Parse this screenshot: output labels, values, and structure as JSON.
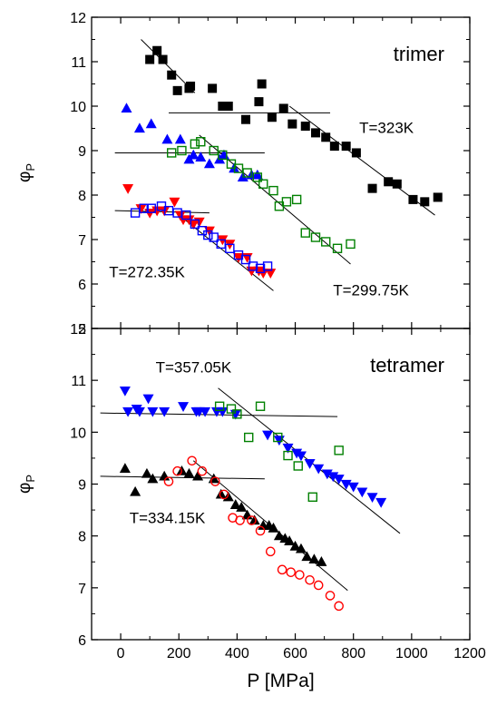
{
  "chart_data": [
    {
      "panel": "top",
      "type": "scatter",
      "panel_label": "trimer",
      "ylabel": "φ",
      "ylabel_subscript": "P",
      "xlim": [
        -100,
        1200
      ],
      "ylim": [
        5,
        12
      ],
      "yticks": [
        5,
        6,
        7,
        8,
        9,
        10,
        11,
        12
      ],
      "ytick_labels": [
        "5",
        "6",
        "7",
        "8",
        "9",
        "10",
        "11",
        "12"
      ],
      "grid": false,
      "annotations": [
        {
          "text": "T=323K",
          "x": 820,
          "y": 9.4
        },
        {
          "text": "T=299.75K",
          "x": 730,
          "y": 5.75
        },
        {
          "text": "T=272.35K",
          "x": -40,
          "y": 6.15
        }
      ],
      "series": [
        {
          "marker": "filled-square",
          "color": "#000000",
          "points": [
            [
              100,
              11.05
            ],
            [
              125,
              11.25
            ],
            [
              145,
              11.05
            ],
            [
              175,
              10.7
            ],
            [
              195,
              10.35
            ],
            [
              235,
              10.4
            ],
            [
              240,
              10.45
            ],
            [
              315,
              10.4
            ],
            [
              350,
              10.0
            ],
            [
              370,
              10.0
            ],
            [
              430,
              9.7
            ],
            [
              475,
              10.1
            ],
            [
              485,
              10.5
            ],
            [
              520,
              9.75
            ],
            [
              560,
              9.95
            ],
            [
              590,
              9.6
            ],
            [
              635,
              9.55
            ],
            [
              670,
              9.4
            ],
            [
              705,
              9.3
            ],
            [
              735,
              9.1
            ],
            [
              775,
              9.1
            ],
            [
              810,
              8.95
            ],
            [
              865,
              8.15
            ],
            [
              920,
              8.3
            ],
            [
              950,
              8.25
            ],
            [
              1005,
              7.9
            ],
            [
              1045,
              7.85
            ],
            [
              1090,
              7.95
            ]
          ]
        },
        {
          "marker": "filled-triangle",
          "color": "#0000ff",
          "points": [
            [
              20,
              9.95
            ],
            [
              65,
              9.5
            ],
            [
              105,
              9.6
            ],
            [
              160,
              9.25
            ],
            [
              205,
              9.25
            ],
            [
              235,
              8.8
            ],
            [
              250,
              8.9
            ],
            [
              275,
              8.85
            ],
            [
              305,
              8.7
            ],
            [
              340,
              8.8
            ],
            [
              355,
              8.9
            ],
            [
              390,
              8.6
            ],
            [
              420,
              8.4
            ],
            [
              450,
              8.45
            ],
            [
              470,
              8.45
            ]
          ]
        },
        {
          "marker": "open-square",
          "color": "#008000",
          "points": [
            [
              175,
              8.95
            ],
            [
              210,
              9.0
            ],
            [
              255,
              9.15
            ],
            [
              275,
              9.2
            ],
            [
              320,
              9.0
            ],
            [
              350,
              8.9
            ],
            [
              380,
              8.7
            ],
            [
              405,
              8.6
            ],
            [
              435,
              8.5
            ],
            [
              470,
              8.4
            ],
            [
              490,
              8.25
            ],
            [
              525,
              8.1
            ],
            [
              545,
              7.75
            ],
            [
              570,
              7.85
            ],
            [
              605,
              7.9
            ],
            [
              635,
              7.15
            ],
            [
              670,
              7.05
            ],
            [
              705,
              6.95
            ],
            [
              745,
              6.8
            ],
            [
              790,
              6.9
            ]
          ]
        },
        {
          "marker": "filled-triangle-down",
          "color": "#ff0000",
          "points": [
            [
              25,
              8.15
            ],
            [
              70,
              7.7
            ],
            [
              100,
              7.6
            ],
            [
              125,
              7.65
            ],
            [
              150,
              7.65
            ],
            [
              185,
              7.85
            ],
            [
              205,
              7.55
            ],
            [
              215,
              7.45
            ],
            [
              235,
              7.45
            ],
            [
              250,
              7.35
            ],
            [
              270,
              7.4
            ],
            [
              305,
              7.2
            ],
            [
              350,
              7.0
            ],
            [
              375,
              6.9
            ],
            [
              405,
              6.6
            ],
            [
              435,
              6.6
            ],
            [
              450,
              6.3
            ],
            [
              475,
              6.3
            ],
            [
              490,
              6.25
            ],
            [
              515,
              6.25
            ]
          ]
        },
        {
          "marker": "open-square",
          "color": "#0000ff",
          "points": [
            [
              50,
              7.6
            ],
            [
              80,
              7.7
            ],
            [
              105,
              7.7
            ],
            [
              140,
              7.75
            ],
            [
              165,
              7.65
            ],
            [
              195,
              7.6
            ],
            [
              225,
              7.55
            ],
            [
              255,
              7.35
            ],
            [
              280,
              7.2
            ],
            [
              300,
              7.1
            ],
            [
              320,
              7.05
            ],
            [
              345,
              6.9
            ],
            [
              375,
              6.8
            ],
            [
              405,
              6.65
            ],
            [
              430,
              6.55
            ],
            [
              455,
              6.4
            ],
            [
              480,
              6.35
            ],
            [
              505,
              6.4
            ]
          ]
        }
      ],
      "fit_lines": [
        {
          "x": [
            70,
            255
          ],
          "y": [
            11.5,
            10.3
          ]
        },
        {
          "x": [
            165,
            720
          ],
          "y": [
            9.85,
            9.85
          ]
        },
        {
          "x": [
            580,
            1080
          ],
          "y": [
            10.0,
            7.55
          ]
        },
        {
          "x": [
            -20,
            495
          ],
          "y": [
            8.95,
            8.95
          ]
        },
        {
          "x": [
            270,
            790
          ],
          "y": [
            9.35,
            6.45
          ]
        },
        {
          "x": [
            -20,
            305
          ],
          "y": [
            7.65,
            7.6
          ]
        },
        {
          "x": [
            210,
            525
          ],
          "y": [
            7.5,
            5.85
          ]
        }
      ]
    },
    {
      "panel": "bottom",
      "type": "scatter",
      "panel_label": "tetramer",
      "xlabel": "P [MPa]",
      "ylabel": "φ",
      "ylabel_subscript": "P",
      "xlim": [
        -100,
        1200
      ],
      "ylim": [
        6,
        12
      ],
      "xticks": [
        0,
        200,
        400,
        600,
        800,
        1000,
        1200
      ],
      "xtick_labels": [
        "0",
        "200",
        "400",
        "600",
        "800",
        "1000",
        "1200"
      ],
      "yticks": [
        6,
        7,
        8,
        9,
        10,
        11,
        12
      ],
      "ytick_labels": [
        "6",
        "7",
        "8",
        "9",
        "10",
        "11",
        "12"
      ],
      "grid": false,
      "annotations": [
        {
          "text": "T=357.05K",
          "x": 120,
          "y": 11.15
        },
        {
          "text": "T=334.15K",
          "x": 30,
          "y": 8.25
        }
      ],
      "series": [
        {
          "marker": "filled-triangle-down",
          "color": "#0000ff",
          "points": [
            [
              15,
              10.8
            ],
            [
              25,
              10.4
            ],
            [
              55,
              10.45
            ],
            [
              65,
              10.4
            ],
            [
              95,
              10.65
            ],
            [
              110,
              10.4
            ],
            [
              150,
              10.4
            ],
            [
              215,
              10.5
            ],
            [
              260,
              10.4
            ],
            [
              270,
              10.4
            ],
            [
              290,
              10.4
            ],
            [
              330,
              10.4
            ],
            [
              350,
              10.4
            ],
            [
              395,
              10.35
            ],
            [
              505,
              9.95
            ],
            [
              545,
              9.85
            ],
            [
              575,
              9.7
            ],
            [
              605,
              9.6
            ],
            [
              620,
              9.55
            ],
            [
              650,
              9.4
            ],
            [
              680,
              9.3
            ],
            [
              710,
              9.2
            ],
            [
              730,
              9.15
            ],
            [
              750,
              9.1
            ],
            [
              775,
              9.0
            ],
            [
              800,
              8.95
            ],
            [
              830,
              8.85
            ],
            [
              865,
              8.75
            ],
            [
              895,
              8.65
            ]
          ]
        },
        {
          "marker": "open-square",
          "color": "#008000",
          "points": [
            [
              340,
              10.5
            ],
            [
              380,
              10.45
            ],
            [
              400,
              10.35
            ],
            [
              440,
              9.9
            ],
            [
              480,
              10.5
            ],
            [
              540,
              9.9
            ],
            [
              575,
              9.55
            ],
            [
              610,
              9.35
            ],
            [
              660,
              8.75
            ],
            [
              750,
              9.65
            ]
          ]
        },
        {
          "marker": "filled-triangle",
          "color": "#000000",
          "points": [
            [
              15,
              9.3
            ],
            [
              50,
              8.85
            ],
            [
              90,
              9.2
            ],
            [
              110,
              9.1
            ],
            [
              150,
              9.15
            ],
            [
              210,
              9.25
            ],
            [
              235,
              9.2
            ],
            [
              265,
              9.15
            ],
            [
              320,
              9.1
            ],
            [
              345,
              8.8
            ],
            [
              370,
              8.75
            ],
            [
              395,
              8.6
            ],
            [
              415,
              8.55
            ],
            [
              435,
              8.4
            ],
            [
              460,
              8.3
            ],
            [
              490,
              8.2
            ],
            [
              510,
              8.2
            ],
            [
              525,
              8.15
            ],
            [
              545,
              8.0
            ],
            [
              565,
              7.95
            ],
            [
              580,
              7.9
            ],
            [
              600,
              7.8
            ],
            [
              620,
              7.75
            ],
            [
              640,
              7.6
            ],
            [
              665,
              7.55
            ],
            [
              690,
              7.5
            ]
          ]
        },
        {
          "marker": "open-circle",
          "color": "#ff0000",
          "points": [
            [
              165,
              9.05
            ],
            [
              195,
              9.25
            ],
            [
              245,
              9.45
            ],
            [
              280,
              9.25
            ],
            [
              325,
              9.05
            ],
            [
              355,
              8.8
            ],
            [
              385,
              8.35
            ],
            [
              410,
              8.3
            ],
            [
              450,
              8.3
            ],
            [
              480,
              8.1
            ],
            [
              515,
              7.7
            ],
            [
              555,
              7.35
            ],
            [
              585,
              7.3
            ],
            [
              615,
              7.25
            ],
            [
              650,
              7.15
            ],
            [
              680,
              7.05
            ],
            [
              720,
              6.85
            ],
            [
              750,
              6.65
            ]
          ]
        }
      ],
      "fit_lines": [
        {
          "x": [
            -70,
            745
          ],
          "y": [
            10.37,
            10.3
          ]
        },
        {
          "x": [
            335,
            960
          ],
          "y": [
            10.85,
            8.05
          ]
        },
        {
          "x": [
            -70,
            495
          ],
          "y": [
            9.15,
            9.1
          ]
        },
        {
          "x": [
            250,
            780
          ],
          "y": [
            9.45,
            6.95
          ]
        }
      ]
    }
  ]
}
